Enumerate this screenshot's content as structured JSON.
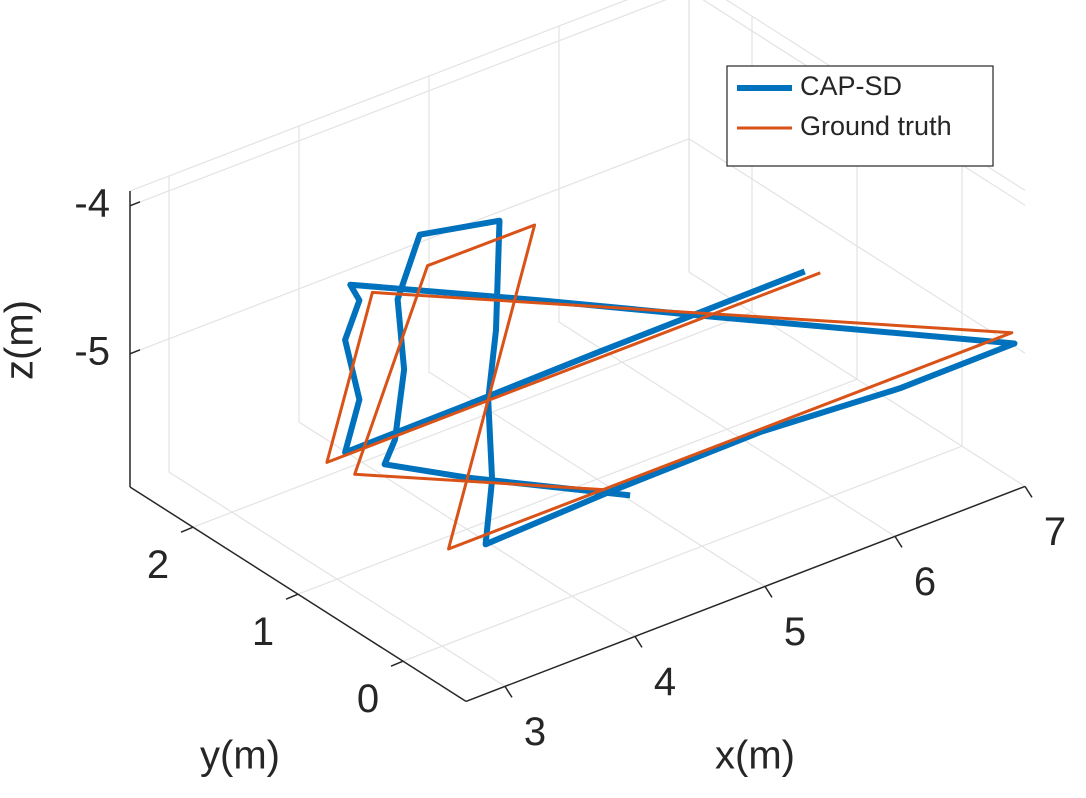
{
  "chart_data": {
    "type": "line3d",
    "xlabel": "x(m)",
    "ylabel": "y(m)",
    "zlabel": "z(m)",
    "xlim": [
      2.7,
      7
    ],
    "ylim": [
      -0.6,
      2.6
    ],
    "zlim": [
      -5.9,
      -3.9
    ],
    "xticks": [
      3,
      4,
      5,
      6,
      7
    ],
    "yticks": [
      0,
      1,
      2
    ],
    "zticks": [
      -5,
      -4
    ],
    "grid": true,
    "legend": "northeast",
    "series": [
      {
        "name": "CAP-SD",
        "color": "#0072BD",
        "x": [
          5.79,
          4.86,
          4.27,
          3.87,
          3.98,
          3.87,
          3.98,
          3.91,
          5.0,
          5.78,
          7.0,
          6.28,
          5.45,
          4.53,
          3.82,
          3.87,
          3.84,
          3.9,
          4.25,
          4.04,
          3.87,
          3.92,
          3.85,
          3.77,
          4.02,
          4.77
        ],
        "y": [
          0,
          0.8,
          1.4,
          2,
          2,
          2,
          2,
          2,
          1.5,
          0.8,
          -0.5,
          -0.3,
          0,
          0.3,
          0.6,
          0.6,
          0.6,
          0.6,
          1.0,
          1.5,
          1.5,
          1.5,
          1.5,
          1.5,
          1.0,
          0.4
        ],
        "z": [
          -4.31,
          -4.9,
          -5.35,
          -5.79,
          -5.47,
          -5.03,
          -4.8,
          -4.67,
          -4.92,
          -4.98,
          -4.98,
          -5.13,
          -5.28,
          -5.51,
          -5.76,
          -5.34,
          -4.79,
          -4.34,
          -3.9,
          -4.15,
          -4.53,
          -5.02,
          -5.47,
          -5.61,
          -5.56,
          -5.66
        ]
      },
      {
        "name": "Ground truth",
        "color": "#D95319",
        "x": [
          5.91,
          3.73,
          4.08,
          6.98,
          3.05,
          4.52,
          4.1,
          3.54,
          4.66
        ],
        "y": [
          0,
          2,
          2,
          -0.5,
          0,
          1,
          1.5,
          1.5,
          0.5
        ],
        "z": [
          -4.36,
          -5.81,
          -4.78,
          -4.9,
          -5.26,
          -4.02,
          -4.38,
          -5.6,
          -5.63
        ]
      }
    ]
  }
}
